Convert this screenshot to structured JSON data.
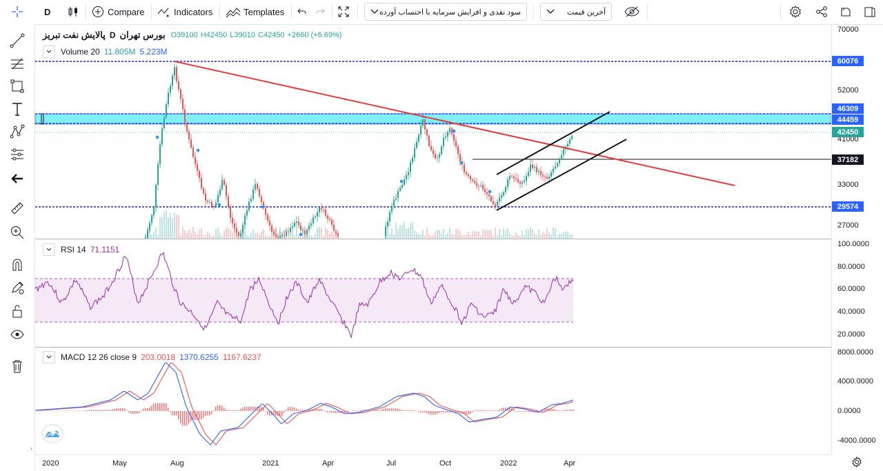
{
  "toolbar": {
    "interval": "D",
    "compare_label": "Compare",
    "indicators_label": "Indicators",
    "templates_label": "Templates",
    "dropdown1": "سود نقدی و افزایش سرمایه با احتساب آورده",
    "dropdown2": "آخرین قیمت"
  },
  "legend": {
    "symbol": "پالایش نفت تبریز",
    "interval": "D",
    "exchange": "بورس تهران",
    "o": "O39100",
    "h": "H42450",
    "l": "L39010",
    "c": "C42450",
    "change": "+2660 (+6.69%)",
    "volume_label": "Volume 20",
    "volume_v1": "11.805M",
    "volume_v2": "5.223M"
  },
  "rsi": {
    "label": "RSI 14",
    "value": "71.1151"
  },
  "macd": {
    "label": "MACD 12 26 close 9",
    "v1": "203.0018",
    "v2": "1370.6255",
    "v3": "1167.6237"
  },
  "price_axis": {
    "ticks": [
      "70000",
      "52000",
      "41000",
      "33000",
      "27000"
    ],
    "tags": [
      {
        "value": "60076",
        "color": "#2962ff"
      },
      {
        "value": "46309",
        "color": "#2962ff"
      },
      {
        "value": "44459",
        "color": "#2962ff"
      },
      {
        "value": "42450",
        "color": "#26a69a"
      },
      {
        "value": "37182",
        "color": "#000000"
      },
      {
        "value": "29574",
        "color": "#2962ff"
      }
    ]
  },
  "rsi_axis": [
    "100.0000",
    "80.0000",
    "60.0000",
    "40.0000",
    "20.0000"
  ],
  "macd_axis": [
    "8000.0000",
    "4000.0000",
    "0.0000",
    "-4000.0000"
  ],
  "time_axis": [
    "2020",
    "May",
    "Aug",
    "2021",
    "Apr",
    "Jul",
    "Oct",
    "2022",
    "Apr"
  ],
  "colors": {
    "up": "#26a69a",
    "down": "#ef5350",
    "trend": "#e53935",
    "zone": "#7ff0f5",
    "hline": "#1a1ad6",
    "rsi": "#9c27b0",
    "macd": "#2962ff",
    "signal": "#ff6d00"
  }
}
